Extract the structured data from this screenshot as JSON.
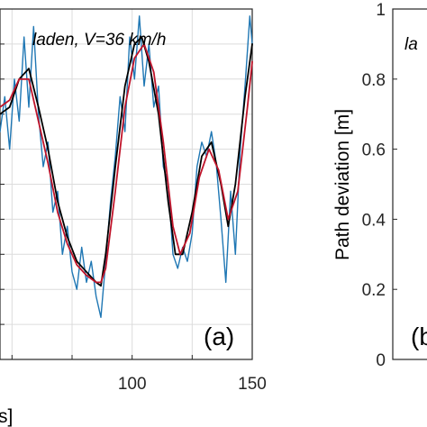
{
  "chart_data": [
    {
      "type": "line",
      "panel_label": "(a)",
      "annotation": "laden, V=36 km/h",
      "xlabel_partial": "s]",
      "x_ticks": [
        "100",
        "150"
      ],
      "xlim": [
        45,
        150
      ],
      "ylim": [
        0,
        1
      ],
      "grid": true,
      "colors": {
        "blue": "#1f77b4",
        "black": "#000000",
        "red": "#c0142a",
        "grid": "#dcdcdc"
      },
      "series": [
        {
          "color_key": "blue",
          "x": [
            45,
            47,
            49,
            51,
            53,
            55,
            57,
            59,
            61,
            63,
            65,
            67,
            69,
            71,
            73,
            75,
            77,
            79,
            81,
            83,
            85,
            87,
            89,
            91,
            93,
            95,
            97,
            99,
            101,
            103,
            105,
            107,
            109,
            111,
            113,
            115,
            117,
            119,
            121,
            123,
            125,
            127,
            129,
            131,
            133,
            135,
            137,
            139,
            141,
            143,
            145,
            147,
            149,
            150
          ],
          "y": [
            0.65,
            0.75,
            0.6,
            0.8,
            0.68,
            0.92,
            0.72,
            0.95,
            0.7,
            0.55,
            0.62,
            0.42,
            0.48,
            0.3,
            0.38,
            0.25,
            0.2,
            0.32,
            0.22,
            0.28,
            0.18,
            0.12,
            0.28,
            0.45,
            0.58,
            0.75,
            0.65,
            0.92,
            0.8,
            0.98,
            0.78,
            0.9,
            0.72,
            0.78,
            0.55,
            0.5,
            0.3,
            0.26,
            0.32,
            0.28,
            0.36,
            0.55,
            0.62,
            0.58,
            0.65,
            0.56,
            0.4,
            0.22,
            0.48,
            0.3,
            0.6,
            0.78,
            0.98,
            0.9
          ]
        },
        {
          "color_key": "black",
          "x": [
            45,
            49,
            53,
            57,
            61,
            65,
            69,
            73,
            77,
            81,
            85,
            87,
            89,
            93,
            97,
            101,
            104,
            107,
            111,
            115,
            118,
            121,
            125,
            129,
            133,
            137,
            140,
            143,
            147,
            150
          ],
          "y": [
            0.7,
            0.72,
            0.8,
            0.83,
            0.72,
            0.6,
            0.45,
            0.35,
            0.28,
            0.25,
            0.22,
            0.21,
            0.3,
            0.55,
            0.78,
            0.9,
            0.92,
            0.85,
            0.7,
            0.45,
            0.3,
            0.3,
            0.42,
            0.58,
            0.62,
            0.5,
            0.38,
            0.5,
            0.75,
            0.9
          ]
        },
        {
          "color_key": "red",
          "x": [
            45,
            49,
            53,
            57,
            61,
            65,
            69,
            73,
            77,
            81,
            85,
            87,
            89,
            93,
            97,
            101,
            105,
            109,
            113,
            117,
            120,
            124,
            128,
            132,
            136,
            140,
            144,
            148,
            150
          ],
          "y": [
            0.72,
            0.74,
            0.8,
            0.8,
            0.68,
            0.56,
            0.42,
            0.33,
            0.27,
            0.24,
            0.22,
            0.22,
            0.26,
            0.48,
            0.72,
            0.86,
            0.9,
            0.82,
            0.62,
            0.38,
            0.3,
            0.36,
            0.52,
            0.6,
            0.54,
            0.4,
            0.48,
            0.72,
            0.85
          ]
        }
      ]
    },
    {
      "type": "line",
      "panel_label_partial": "(b",
      "annotation_partial": "la",
      "ylabel": "Path deviation [m]",
      "y_ticks": [
        "0",
        "0.2",
        "0.4",
        "0.6",
        "0.8",
        "1"
      ],
      "ylim": [
        0,
        1
      ],
      "grid": false,
      "series": []
    }
  ]
}
